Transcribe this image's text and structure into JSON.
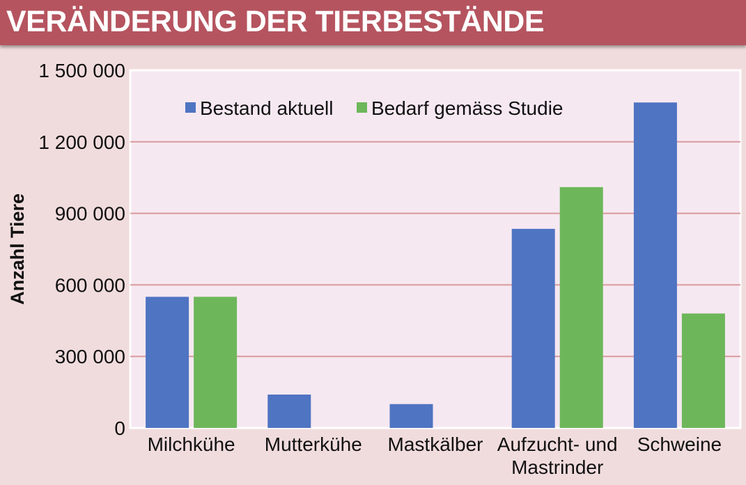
{
  "header": {
    "title": "VERÄNDERUNG DER TIERBESTÄNDE"
  },
  "colors": {
    "header_bg": "#b5545f",
    "page_bg": "#f1dcdd",
    "plot_bg": "#f6e8f1",
    "gridline": "#d99a9e",
    "series_current": "#4f74c2",
    "series_required": "#6db75a"
  },
  "chart_data": {
    "type": "bar",
    "title": "",
    "xlabel": "",
    "ylabel": "Anzahl Tiere",
    "ylim": [
      0,
      1500000
    ],
    "yticks": [
      0,
      300000,
      600000,
      900000,
      1200000,
      1500000
    ],
    "ytick_labels": [
      "0",
      "300 000",
      "600 000",
      "900 000",
      "1 200 000",
      "1 500 000"
    ],
    "grid": true,
    "legend_position": "top-left",
    "categories": [
      [
        "Milchkühe"
      ],
      [
        "Mutterkühe"
      ],
      [
        "Mastkälber"
      ],
      [
        "Aufzucht- und",
        "Mastrinder"
      ],
      [
        "Schweine"
      ]
    ],
    "series": [
      {
        "name": "Bestand aktuell",
        "color": "#4f74c2",
        "values": [
          550000,
          140000,
          100000,
          835000,
          1365000
        ]
      },
      {
        "name": "Bedarf gemäss Studie",
        "color": "#6db75a",
        "values": [
          550000,
          0,
          0,
          1010000,
          480000
        ]
      }
    ]
  }
}
